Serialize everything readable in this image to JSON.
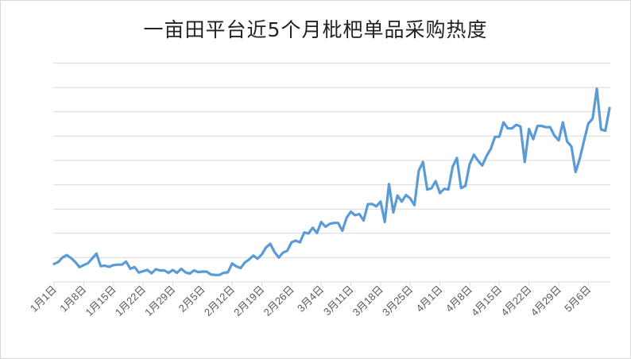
{
  "chart_data": {
    "type": "line",
    "title": "一亩田平台近5个月枇杷单品采购热度",
    "xlabel": "",
    "ylabel": "",
    "grid": true,
    "legend": "none",
    "y_tick_labels_shown": false,
    "x_tick_labels": [
      "1月1日",
      "1月8日",
      "1月15日",
      "1月22日",
      "1月29日",
      "2月5日",
      "2月12日",
      "2月19日",
      "2月26日",
      "3月4日",
      "3月11日",
      "3月18日",
      "3月25日",
      "4月1日",
      "4月8日",
      "4月15日",
      "4月22日",
      "4月29日",
      "5月6日"
    ],
    "series": [
      {
        "color": "#5b9bd5",
        "values": [
          0.45,
          0.53,
          0.72,
          0.82,
          0.7,
          0.53,
          0.32,
          0.4,
          0.48,
          0.68,
          0.88,
          0.36,
          0.38,
          0.33,
          0.4,
          0.42,
          0.42,
          0.55,
          0.25,
          0.32,
          0.09,
          0.15,
          0.2,
          0.06,
          0.23,
          0.18,
          0.18,
          0.08,
          0.2,
          0.08,
          0.25,
          0.1,
          0.05,
          0.18,
          0.11,
          0.13,
          0.13,
          0.01,
          -0.01,
          -0.01,
          0.08,
          0.1,
          0.47,
          0.35,
          0.28,
          0.51,
          0.64,
          0.8,
          0.67,
          0.85,
          1.14,
          1.29,
          0.94,
          0.72,
          0.92,
          1.0,
          1.35,
          1.42,
          1.35,
          1.76,
          1.72,
          1.96,
          1.74,
          2.2,
          2.0,
          2.12,
          2.16,
          2.16,
          1.83,
          2.38,
          2.63,
          2.48,
          2.53,
          2.26,
          2.94,
          2.95,
          2.85,
          3.05,
          2.2,
          3.78,
          2.6,
          3.3,
          3.05,
          3.32,
          3.18,
          2.9,
          4.33,
          4.7,
          3.55,
          3.6,
          3.9,
          3.4,
          3.58,
          3.55,
          4.5,
          4.87,
          3.61,
          3.7,
          4.6,
          5.0,
          4.75,
          4.55,
          4.95,
          5.25,
          5.75,
          5.75,
          6.35,
          6.1,
          6.1,
          6.25,
          6.18,
          4.7,
          6.07,
          5.65,
          6.2,
          6.2,
          6.15,
          6.15,
          5.8,
          5.6,
          6.35,
          5.55,
          5.35,
          4.28,
          4.85,
          5.6,
          6.3,
          6.5,
          7.75,
          6.05,
          6.0,
          6.95
        ]
      }
    ],
    "ylim": [
      -0.3,
      8.8
    ]
  }
}
